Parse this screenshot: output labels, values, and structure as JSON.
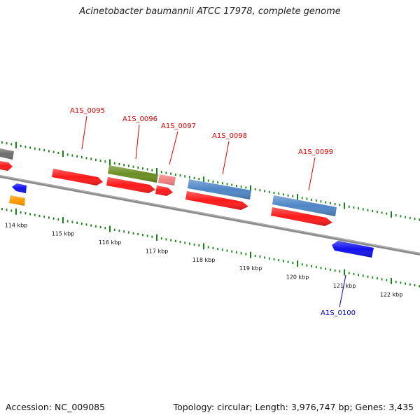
{
  "title": "Acinetobacter baumannii ATCC 17978, complete genome",
  "accession": "Accession: NC_009085",
  "summary": "Topology: circular; Length: 3,976,747 bp; Genes: 3,435",
  "colors": {
    "cds_red": "#ff1a1a",
    "cds_blue": "#1010ee",
    "cds_orange": "#ff9900",
    "gene_green": "#6b8e23",
    "gene_steel": "#4f86c6",
    "gene_pink": "#f08080",
    "gene_gray": "#6e6e6e",
    "tick_green": "#1a7f1a",
    "backbone": "#8a8a8a",
    "label_red": "#dd0000",
    "label_blue": "#0000cc"
  },
  "scale": {
    "unit": "kbp",
    "ticks": [
      {
        "kbp": 114,
        "label": "114 kbp"
      },
      {
        "kbp": 115,
        "label": "115 kbp"
      },
      {
        "kbp": 116,
        "label": "116 kbp"
      },
      {
        "kbp": 117,
        "label": "117 kbp"
      },
      {
        "kbp": 118,
        "label": "118 kbp"
      },
      {
        "kbp": 119,
        "label": "119 kbp"
      },
      {
        "kbp": 120,
        "label": "120 kbp"
      },
      {
        "kbp": 121,
        "label": "121 kbp"
      },
      {
        "kbp": 122,
        "label": "122 kbp"
      }
    ]
  },
  "gene_labels": [
    {
      "text": "A1S_0095",
      "strand": "forward"
    },
    {
      "text": "A1S_0096",
      "strand": "forward"
    },
    {
      "text": "A1S_0097",
      "strand": "forward"
    },
    {
      "text": "A1S_0098",
      "strand": "forward"
    },
    {
      "text": "A1S_0099",
      "strand": "forward"
    },
    {
      "text": "A1S_0100",
      "strand": "reverse"
    }
  ]
}
